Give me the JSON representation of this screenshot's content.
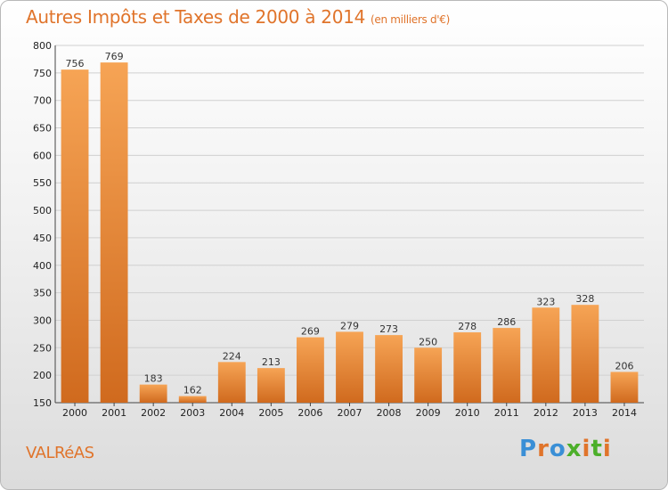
{
  "title": "Autres Impôts et Taxes de 2000 à 2014",
  "subtitle": "(en milliers d'€)",
  "town": "VALRéAS",
  "logo": "Proxiti",
  "colors": {
    "accent": "#e0742b",
    "bar_top": "#f6a455",
    "bar_bottom": "#d06a1e",
    "logo_letters": [
      "#3a8fd6",
      "#e0742b",
      "#3a8fd6",
      "#4caf2a",
      "#e0742b",
      "#4caf2a",
      "#e0742b"
    ]
  },
  "chart_data": {
    "type": "bar",
    "categories": [
      "2000",
      "2001",
      "2002",
      "2003",
      "2004",
      "2005",
      "2006",
      "2007",
      "2008",
      "2009",
      "2010",
      "2011",
      "2012",
      "2013",
      "2014"
    ],
    "values": [
      756,
      769,
      183,
      162,
      224,
      213,
      269,
      279,
      273,
      250,
      278,
      286,
      323,
      328,
      206
    ],
    "title": "Autres Impôts et Taxes de 2000 à 2014",
    "ylim": [
      150,
      800
    ],
    "yticks": [
      150,
      200,
      250,
      300,
      350,
      400,
      450,
      500,
      550,
      600,
      650,
      700,
      750,
      800
    ],
    "grid": true
  }
}
